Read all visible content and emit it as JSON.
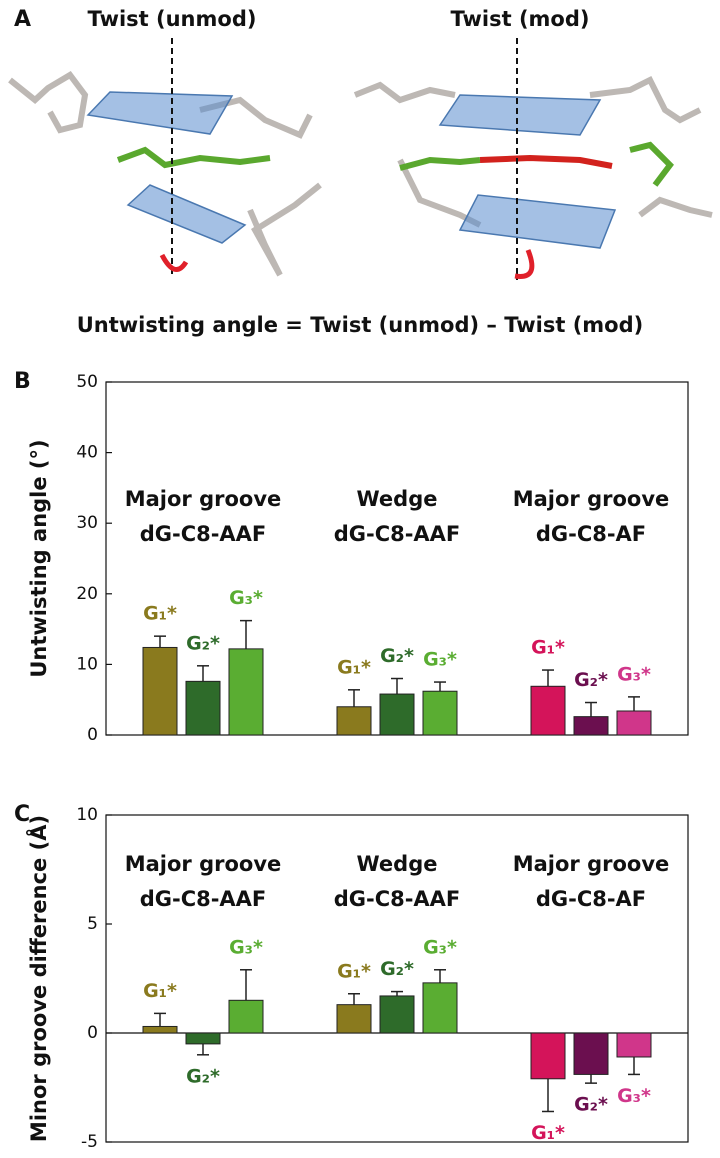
{
  "panel_a": {
    "label": "A",
    "left_title": "Twist (unmod)",
    "right_title": "Twist (mod)",
    "equation": "Untwisting angle = Twist (unmod) – Twist (mod)"
  },
  "chart_data": [
    {
      "type": "bar",
      "panel_label": "B",
      "ylabel": "Untwisting angle (°)",
      "ylim": [
        0,
        50
      ],
      "yticks": [
        0,
        10,
        20,
        30,
        40,
        50
      ],
      "groups": [
        {
          "title_lines": [
            "Major groove",
            "dG-C8-AAF"
          ],
          "bars": [
            {
              "label": "G₁*",
              "color": "#8a7a1e",
              "value": 12.4,
              "error": 1.6
            },
            {
              "label": "G₂*",
              "color": "#2e6b2a",
              "value": 7.6,
              "error": 2.2
            },
            {
              "label": "G₃*",
              "color": "#5aad32",
              "value": 12.2,
              "error": 4.0
            }
          ]
        },
        {
          "title_lines": [
            "Wedge",
            "dG-C8-AAF"
          ],
          "bars": [
            {
              "label": "G₁*",
              "color": "#8a7a1e",
              "value": 4.0,
              "error": 2.4
            },
            {
              "label": "G₂*",
              "color": "#2e6b2a",
              "value": 5.8,
              "error": 2.2
            },
            {
              "label": "G₃*",
              "color": "#5aad32",
              "value": 6.2,
              "error": 1.3
            }
          ]
        },
        {
          "title_lines": [
            "Major groove",
            "dG-C8-AF"
          ],
          "bars": [
            {
              "label": "G₁*",
              "color": "#d4145a",
              "value": 6.9,
              "error": 2.3
            },
            {
              "label": "G₂*",
              "color": "#6b0f4f",
              "value": 2.6,
              "error": 2.0
            },
            {
              "label": "G₃*",
              "color": "#d0368a",
              "value": 3.4,
              "error": 2.0
            }
          ]
        }
      ]
    },
    {
      "type": "bar",
      "panel_label": "C",
      "ylabel": "Minor groove difference (Å)",
      "ylim": [
        -5,
        10
      ],
      "yticks": [
        -5,
        0,
        5,
        10
      ],
      "groups": [
        {
          "title_lines": [
            "Major groove",
            "dG-C8-AAF"
          ],
          "bars": [
            {
              "label": "G₁*",
              "color": "#8a7a1e",
              "value": 0.3,
              "error": 0.6
            },
            {
              "label": "G₂*",
              "color": "#2e6b2a",
              "value": -0.5,
              "error": 0.5
            },
            {
              "label": "G₃*",
              "color": "#5aad32",
              "value": 1.5,
              "error": 1.4
            }
          ]
        },
        {
          "title_lines": [
            "Wedge",
            "dG-C8-AAF"
          ],
          "bars": [
            {
              "label": "G₁*",
              "color": "#8a7a1e",
              "value": 1.3,
              "error": 0.5
            },
            {
              "label": "G₂*",
              "color": "#2e6b2a",
              "value": 1.7,
              "error": 0.2
            },
            {
              "label": "G₃*",
              "color": "#5aad32",
              "value": 2.3,
              "error": 0.6
            }
          ]
        },
        {
          "title_lines": [
            "Major groove",
            "dG-C8-AF"
          ],
          "bars": [
            {
              "label": "G₁*",
              "color": "#d4145a",
              "value": -2.1,
              "error": 1.5
            },
            {
              "label": "G₂*",
              "color": "#6b0f4f",
              "value": -1.9,
              "error": 0.4
            },
            {
              "label": "G₃*",
              "color": "#d0368a",
              "value": -1.1,
              "error": 0.8
            }
          ]
        }
      ]
    }
  ]
}
